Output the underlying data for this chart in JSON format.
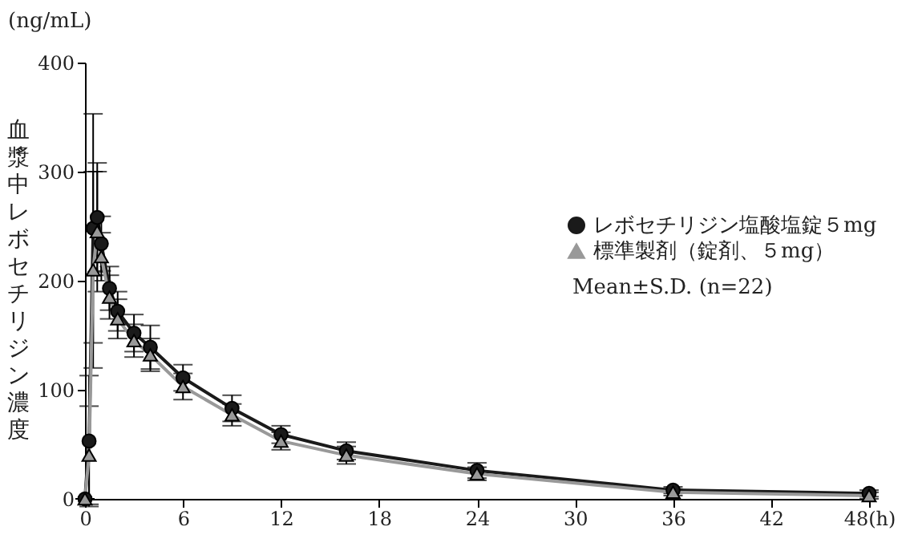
{
  "chart_data": {
    "type": "line",
    "ylabel": "血漿中レボセチリジン濃度",
    "annotations": [
      "(ng/mL)",
      "Mean±S.D. (n=22)"
    ],
    "x": [
      0,
      0.25,
      0.5,
      0.75,
      1,
      1.5,
      2,
      3,
      4,
      6,
      9,
      12,
      16,
      24,
      36,
      48
    ],
    "xlim": [
      0,
      48
    ],
    "xticks": [
      0,
      6,
      12,
      18,
      24,
      30,
      36,
      42,
      {
        "value": 48,
        "label": "48(h)"
      }
    ],
    "ylim": [
      0,
      400
    ],
    "yticks": [
      0,
      100,
      200,
      300,
      400
    ],
    "grid": false,
    "legend": "right",
    "series": [
      {
        "name": "レボセチリジン塩酸塩錠５mg",
        "color": "#1a1a1a",
        "marker": "circle",
        "values": [
          0,
          53,
          248,
          258,
          234,
          193,
          172,
          152,
          139,
          111,
          83,
          59,
          44,
          26,
          8,
          5
        ],
        "errors": [
          0,
          60,
          105,
          50,
          25,
          20,
          18,
          17,
          20,
          12,
          12,
          8,
          8,
          7,
          3,
          3
        ]
      },
      {
        "name": "標準製剤（錠剤、５mg）",
        "color": "#999999",
        "marker": "triangle",
        "values": [
          0,
          40,
          210,
          245,
          222,
          185,
          165,
          145,
          132,
          103,
          77,
          53,
          40,
          23,
          6,
          3
        ],
        "errors": [
          0,
          45,
          90,
          55,
          22,
          20,
          18,
          15,
          15,
          12,
          10,
          8,
          8,
          6,
          3,
          3
        ]
      }
    ]
  }
}
